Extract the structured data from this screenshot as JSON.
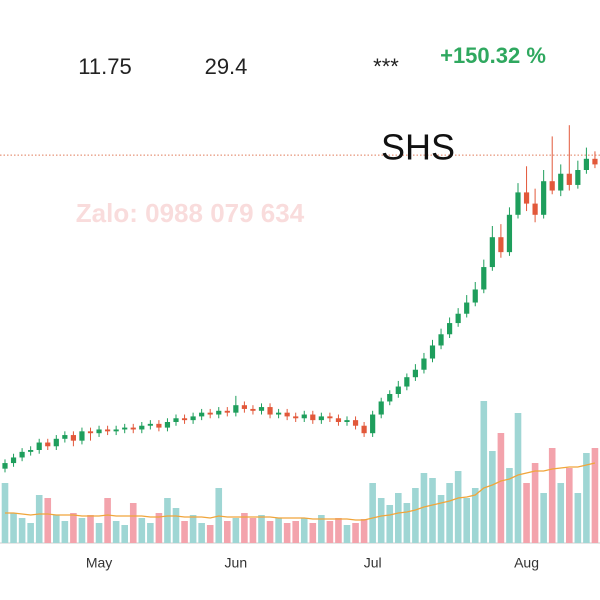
{
  "header": {
    "values": [
      "11.75",
      "29.4",
      "***"
    ],
    "change": "+150.32 %"
  },
  "chart_data": {
    "type": "candlestick",
    "title": "SHS",
    "watermark": "Zalo: 0988 079 634",
    "categories": [
      null,
      null,
      null,
      null,
      null,
      null,
      null,
      null,
      null,
      null,
      null,
      "May",
      null,
      null,
      null,
      null,
      null,
      null,
      null,
      null,
      null,
      null,
      null,
      null,
      null,
      null,
      null,
      "Jun",
      null,
      null,
      null,
      null,
      null,
      null,
      null,
      null,
      null,
      null,
      null,
      null,
      null,
      null,
      null,
      "Jul",
      null,
      null,
      null,
      null,
      null,
      null,
      null,
      null,
      null,
      null,
      null,
      null,
      null,
      null,
      null,
      null,
      null,
      "Aug",
      null,
      null,
      null,
      null,
      null,
      null,
      null,
      null
    ],
    "open": [
      11.0,
      11.3,
      11.6,
      11.9,
      12.0,
      12.4,
      12.2,
      12.6,
      12.8,
      12.5,
      13.0,
      12.9,
      13.1,
      13.0,
      13.1,
      13.2,
      13.1,
      13.3,
      13.4,
      13.2,
      13.5,
      13.7,
      13.6,
      13.8,
      14.0,
      13.9,
      14.1,
      14.0,
      14.4,
      14.2,
      14.1,
      14.3,
      13.9,
      14.0,
      13.8,
      13.7,
      13.9,
      13.6,
      13.8,
      13.7,
      13.5,
      13.6,
      13.3,
      12.9,
      13.9,
      14.6,
      15.0,
      15.4,
      15.9,
      16.3,
      16.9,
      17.6,
      18.2,
      18.8,
      19.3,
      19.9,
      20.6,
      21.8,
      23.4,
      22.6,
      24.6,
      25.8,
      25.2,
      24.6,
      26.4,
      25.9,
      26.8,
      26.2,
      27.0,
      27.6
    ],
    "high": [
      11.5,
      11.8,
      12.1,
      12.2,
      12.6,
      12.6,
      12.8,
      13.0,
      13.0,
      13.2,
      13.2,
      13.3,
      13.3,
      13.3,
      13.4,
      13.4,
      13.5,
      13.6,
      13.6,
      13.7,
      13.9,
      13.9,
      14.0,
      14.2,
      14.2,
      14.3,
      14.3,
      14.9,
      14.6,
      14.4,
      14.5,
      14.5,
      14.2,
      14.2,
      14.0,
      14.1,
      14.1,
      14.0,
      14.0,
      13.9,
      13.8,
      13.8,
      13.5,
      14.1,
      14.8,
      15.2,
      15.7,
      16.1,
      16.6,
      17.2,
      17.9,
      18.5,
      19.1,
      19.6,
      20.3,
      21.0,
      22.2,
      24.0,
      24.1,
      25.0,
      26.3,
      27.2,
      26.0,
      27.0,
      28.8,
      27.3,
      29.4,
      27.5,
      28.2,
      28.0
    ],
    "low": [
      10.8,
      11.1,
      11.4,
      11.7,
      11.8,
      12.0,
      12.0,
      12.4,
      12.2,
      12.3,
      12.5,
      12.7,
      12.8,
      12.8,
      12.9,
      12.9,
      12.9,
      13.1,
      13.0,
      13.0,
      13.3,
      13.4,
      13.4,
      13.6,
      13.7,
      13.7,
      13.8,
      13.8,
      14.0,
      13.9,
      13.9,
      13.7,
      13.7,
      13.6,
      13.5,
      13.5,
      13.4,
      13.4,
      13.5,
      13.3,
      13.3,
      13.1,
      12.7,
      12.7,
      13.7,
      14.4,
      14.8,
      15.2,
      15.7,
      16.1,
      16.7,
      17.4,
      18.0,
      18.6,
      19.1,
      19.7,
      20.4,
      21.6,
      22.3,
      22.4,
      24.4,
      24.8,
      24.2,
      24.4,
      25.7,
      25.6,
      25.9,
      26.0,
      26.8,
      27.1
    ],
    "close": [
      11.3,
      11.6,
      11.9,
      12.0,
      12.4,
      12.2,
      12.6,
      12.8,
      12.5,
      13.0,
      12.9,
      13.1,
      13.0,
      13.1,
      13.2,
      13.1,
      13.3,
      13.4,
      13.2,
      13.5,
      13.7,
      13.6,
      13.8,
      14.0,
      13.9,
      14.1,
      14.0,
      14.4,
      14.2,
      14.1,
      14.3,
      13.9,
      14.0,
      13.8,
      13.7,
      13.9,
      13.6,
      13.8,
      13.7,
      13.5,
      13.6,
      13.3,
      12.9,
      13.9,
      14.6,
      15.0,
      15.4,
      15.9,
      16.3,
      16.9,
      17.6,
      18.2,
      18.8,
      19.3,
      19.9,
      20.6,
      21.8,
      23.4,
      22.6,
      24.6,
      25.8,
      25.2,
      24.6,
      26.4,
      25.9,
      26.8,
      26.2,
      27.0,
      27.6,
      27.3
    ],
    "volume": [
      60,
      30,
      25,
      20,
      48,
      45,
      28,
      22,
      30,
      25,
      28,
      20,
      45,
      22,
      18,
      40,
      25,
      20,
      30,
      45,
      35,
      22,
      28,
      20,
      18,
      55,
      22,
      25,
      30,
      25,
      28,
      22,
      25,
      20,
      22,
      25,
      20,
      28,
      22,
      25,
      18,
      20,
      24,
      60,
      45,
      38,
      50,
      40,
      55,
      70,
      65,
      48,
      60,
      72,
      45,
      55,
      142,
      92,
      110,
      75,
      130,
      60,
      80,
      50,
      95,
      60,
      75,
      50,
      90,
      95
    ],
    "volume_ma": [
      30,
      30,
      29,
      28,
      29,
      29,
      28,
      28,
      28,
      27,
      27,
      27,
      28,
      27,
      27,
      27,
      27,
      26,
      26,
      27,
      27,
      26,
      26,
      26,
      25,
      27,
      26,
      26,
      26,
      26,
      26,
      26,
      25,
      25,
      25,
      25,
      24,
      24,
      24,
      24,
      24,
      23,
      23,
      25,
      27,
      28,
      30,
      31,
      33,
      36,
      38,
      40,
      42,
      45,
      46,
      48,
      55,
      58,
      62,
      64,
      68,
      70,
      72,
      72,
      74,
      75,
      76,
      76,
      78,
      80
    ],
    "ylim": [
      10.5,
      30
    ],
    "volume_ylim": [
      0,
      150
    ],
    "ref_line": 27.8,
    "up_color": "#1e9e5c",
    "down_color": "#e2583a",
    "vol_up_color": "#9fd6d4",
    "vol_down_color": "#f3a3ac",
    "ma_color": "#f0a53a",
    "ref_color": "#e07b5a"
  }
}
